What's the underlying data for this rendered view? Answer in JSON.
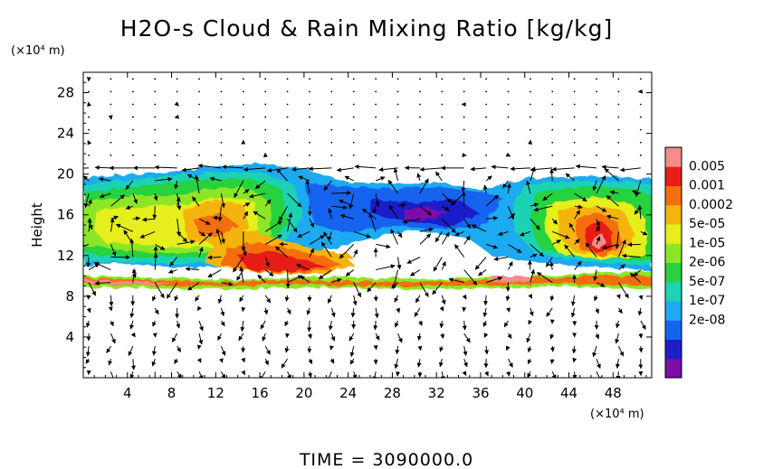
{
  "chart_data": {
    "type": "heatmap",
    "title": "H2O-s Cloud & Rain Mixing Ratio [kg/kg]",
    "ylabel": "Height",
    "xunit": "(×10⁴ m)",
    "yunit": "(×10⁴ m)",
    "xlim": [
      0,
      51.5
    ],
    "ylim": [
      0,
      30
    ],
    "xticks": [
      "4",
      "8",
      "12",
      "16",
      "20",
      "24",
      "28",
      "32",
      "36",
      "40",
      "44",
      "48"
    ],
    "yticks": [
      "4",
      "8",
      "12",
      "16",
      "20",
      "24",
      "28"
    ],
    "colorbar": {
      "labels": [
        "0.005",
        "0.001",
        "0.0002",
        "5e-05",
        "1e-05",
        "2e-06",
        "5e-07",
        "1e-07",
        "2e-08"
      ],
      "colors": [
        "#7b0fa8",
        "#1e1ec8",
        "#1464f0",
        "#1eaaf0",
        "#1ed2b4",
        "#28d23c",
        "#8ce628",
        "#e6ee1e",
        "#f5b40f",
        "#f56e0f",
        "#e61e14",
        "#f58c8c"
      ]
    },
    "fields": [
      {
        "name": "upper cloud layer",
        "x": [
          0,
          51.5
        ],
        "y": [
          10.5,
          20
        ],
        "levels": [
          "5e-07",
          "0.001"
        ]
      },
      {
        "name": "left core",
        "x": [
          0,
          16
        ],
        "y": [
          12,
          18
        ],
        "levels": [
          "1e-05",
          "0.0002"
        ]
      },
      {
        "name": "rain band",
        "x": [
          9,
          20
        ],
        "y": [
          10,
          16
        ],
        "levels": [
          "0.0002",
          "0.001"
        ]
      },
      {
        "name": "right core",
        "x": [
          41,
          51.5
        ],
        "y": [
          10,
          18
        ],
        "levels": [
          "0.0002",
          "0.005"
        ]
      },
      {
        "name": "clear gap",
        "x": [
          25,
          36
        ],
        "y": [
          9.5,
          12
        ],
        "levels": []
      },
      {
        "name": "lower layer",
        "x": [
          0,
          51.5
        ],
        "y": [
          8.5,
          10
        ],
        "levels": [
          "1e-05",
          "0.001"
        ]
      }
    ],
    "vectors": "wind arrows across domain",
    "time_label": "TIME = 3090000.0"
  }
}
